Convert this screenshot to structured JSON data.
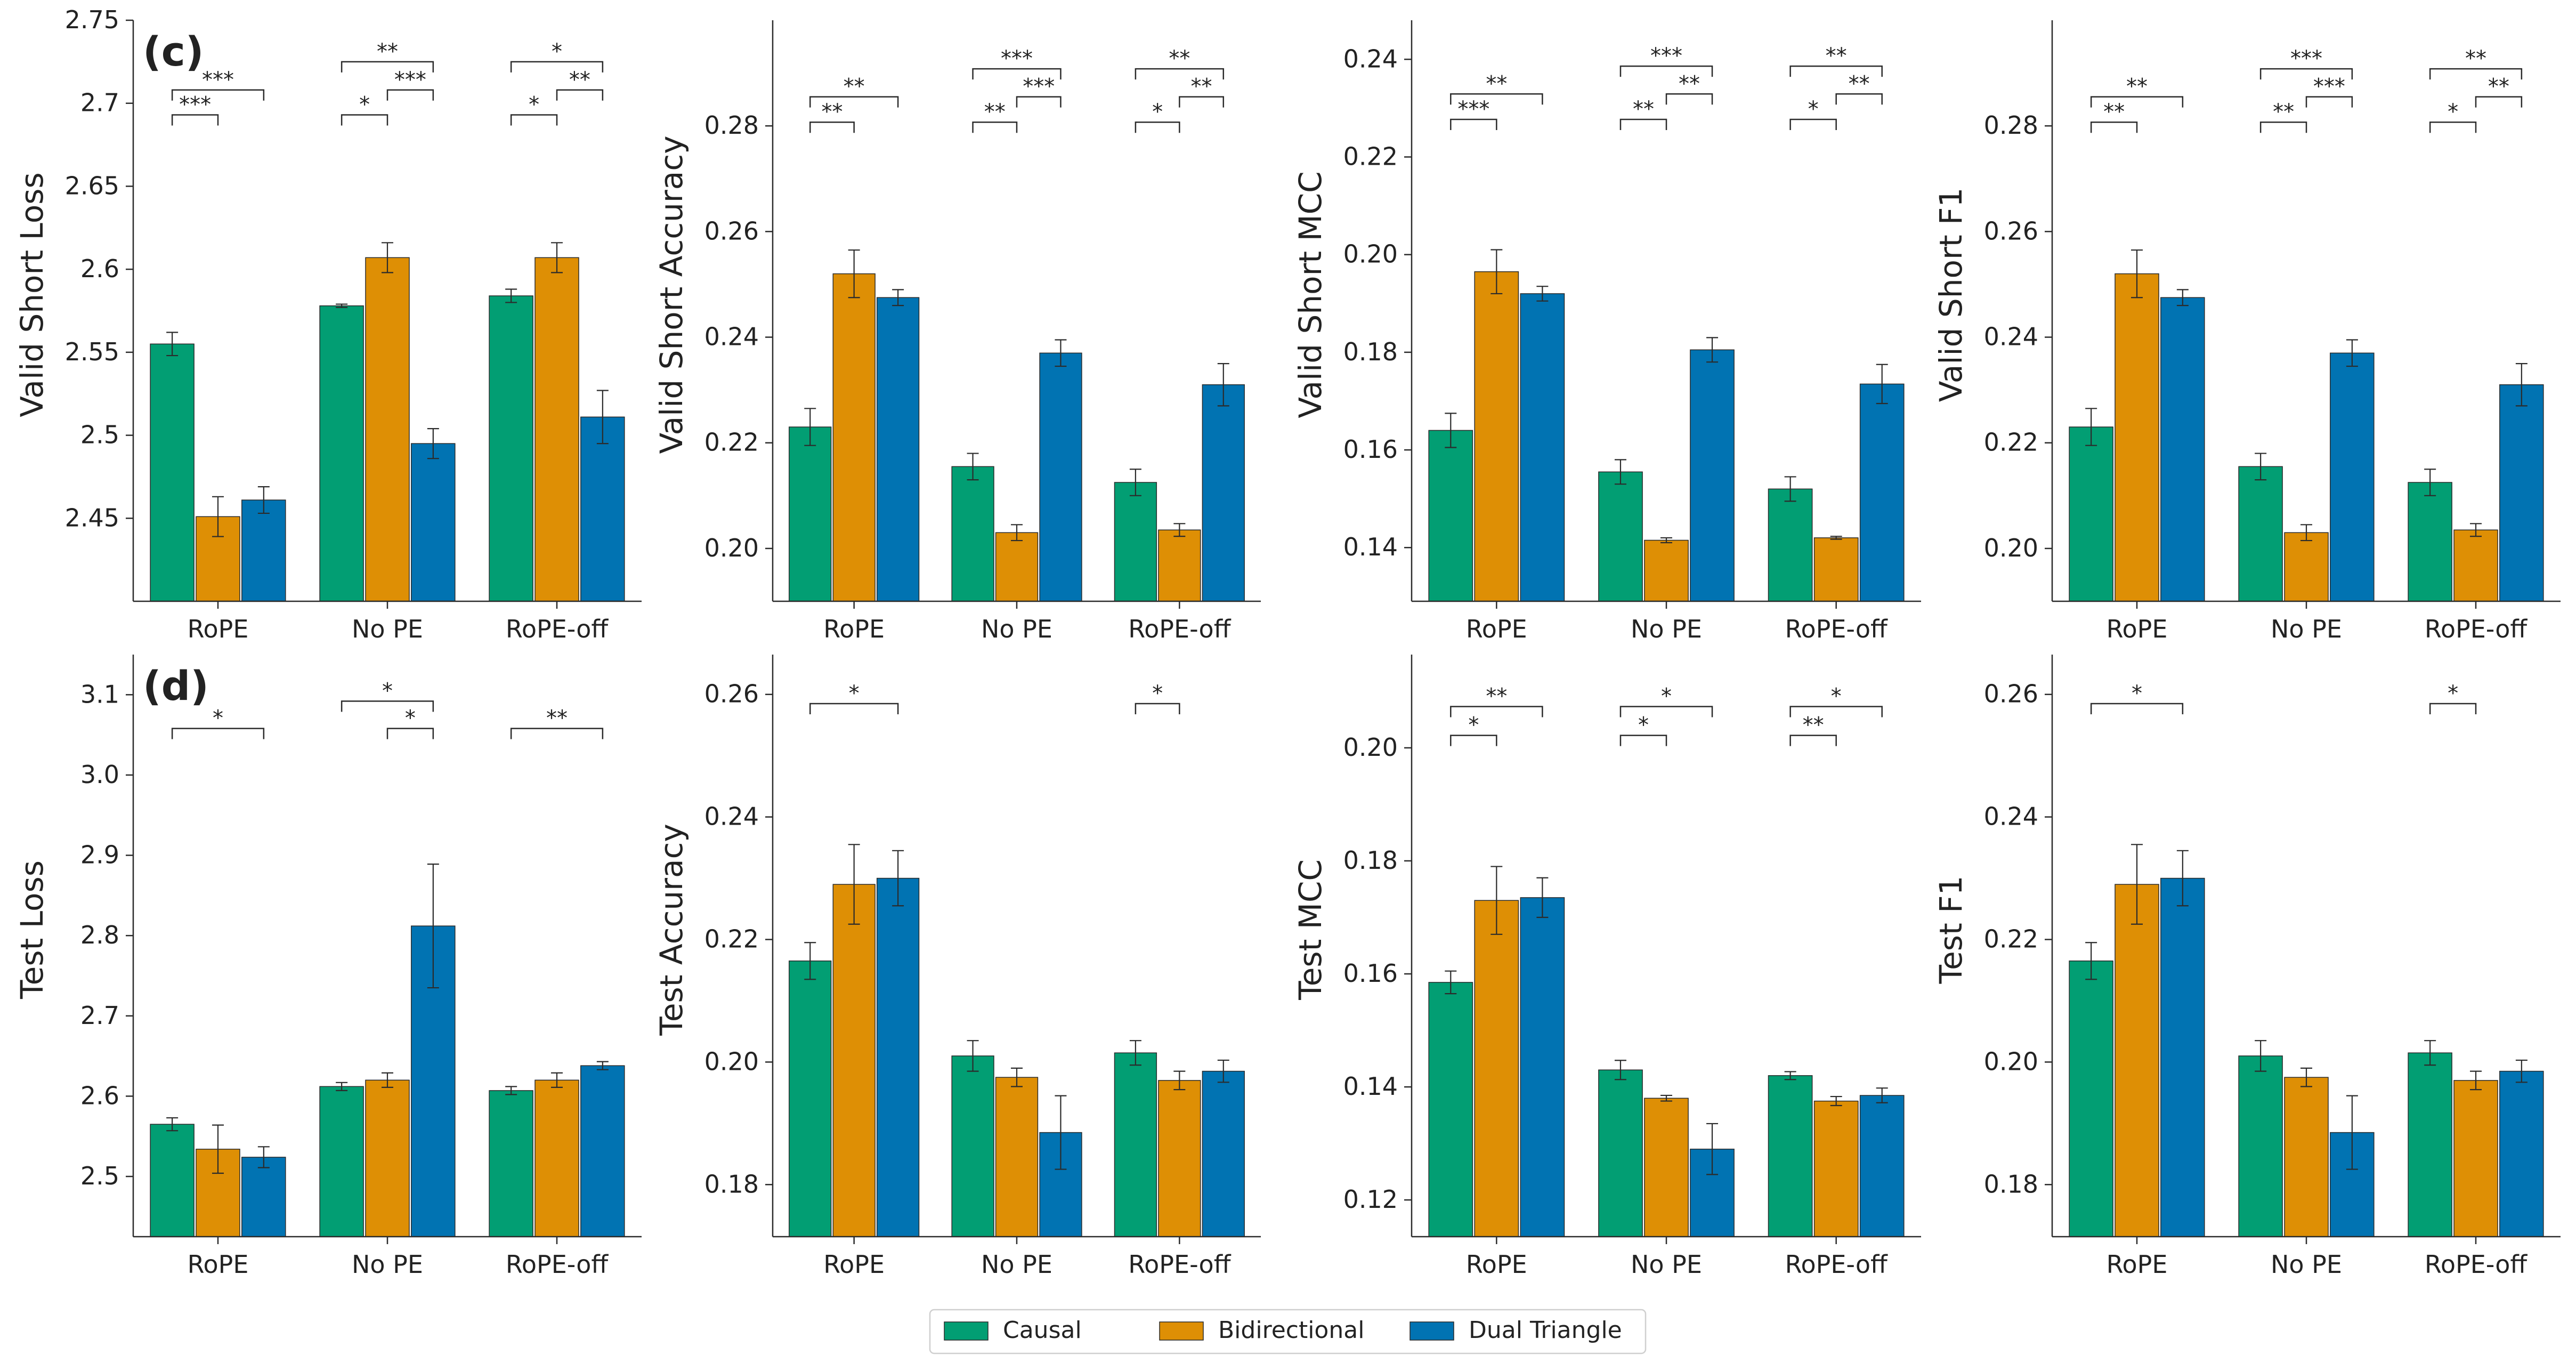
{
  "legend": {
    "items": [
      {
        "label": "Causal",
        "color": "#029e73"
      },
      {
        "label": "Bidirectional",
        "color": "#de8f05"
      },
      {
        "label": "Dual Triangle",
        "color": "#0173b2"
      }
    ],
    "placement": "bottom-center"
  },
  "chart_data": [
    {
      "type": "bar",
      "panel_label": "(c)",
      "ylabel": "Valid Short Loss",
      "categories": [
        "RoPE",
        "No PE",
        "RoPE-off"
      ],
      "ylim": [
        2.4,
        2.75
      ],
      "yticks": [
        2.45,
        2.5,
        2.55,
        2.6,
        2.65,
        2.7,
        2.75
      ],
      "series": [
        {
          "name": "Causal",
          "values": [
            2.555,
            2.578,
            2.584
          ],
          "err": [
            0.007,
            0.001,
            0.004
          ]
        },
        {
          "name": "Bidirectional",
          "values": [
            2.451,
            2.607,
            2.607
          ],
          "err": [
            0.012,
            0.009,
            0.009
          ]
        },
        {
          "name": "Dual Triangle",
          "values": [
            2.461,
            2.495,
            2.511
          ],
          "err": [
            0.008,
            0.009,
            0.016
          ]
        }
      ],
      "annotations": [
        {
          "group": 0,
          "pairs": [
            {
              "from": 0,
              "to": 1,
              "text": "***",
              "y": 2.693
            },
            {
              "from": 0,
              "to": 2,
              "text": "***",
              "y": 2.708
            }
          ]
        },
        {
          "group": 1,
          "pairs": [
            {
              "from": 0,
              "to": 1,
              "text": "*",
              "y": 2.693
            },
            {
              "from": 1,
              "to": 2,
              "text": "***",
              "y": 2.708
            },
            {
              "from": 0,
              "to": 2,
              "text": "**",
              "y": 2.725
            }
          ]
        },
        {
          "group": 2,
          "pairs": [
            {
              "from": 0,
              "to": 1,
              "text": "*",
              "y": 2.693
            },
            {
              "from": 1,
              "to": 2,
              "text": "**",
              "y": 2.708
            },
            {
              "from": 0,
              "to": 2,
              "text": "*",
              "y": 2.725
            }
          ]
        }
      ]
    },
    {
      "type": "bar",
      "panel_label": "",
      "ylabel": "Valid Short Accuracy",
      "categories": [
        "RoPE",
        "No PE",
        "RoPE-off"
      ],
      "ylim": [
        0.19,
        0.3
      ],
      "yticks": [
        0.2,
        0.22,
        0.24,
        0.26,
        0.28
      ],
      "series": [
        {
          "name": "Causal",
          "values": [
            0.223,
            0.2155,
            0.2125
          ],
          "err": [
            0.0035,
            0.0025,
            0.0025
          ]
        },
        {
          "name": "Bidirectional",
          "values": [
            0.252,
            0.203,
            0.2035
          ],
          "err": [
            0.0045,
            0.0015,
            0.0012
          ]
        },
        {
          "name": "Dual Triangle",
          "values": [
            0.2475,
            0.237,
            0.231
          ],
          "err": [
            0.0015,
            0.0025,
            0.004
          ]
        }
      ],
      "annotations": [
        {
          "group": 0,
          "pairs": [
            {
              "from": 0,
              "to": 1,
              "text": "**",
              "y": 0.2807
            },
            {
              "from": 0,
              "to": 2,
              "text": "**",
              "y": 0.2855
            }
          ]
        },
        {
          "group": 1,
          "pairs": [
            {
              "from": 0,
              "to": 1,
              "text": "**",
              "y": 0.2807
            },
            {
              "from": 1,
              "to": 2,
              "text": "***",
              "y": 0.2855
            },
            {
              "from": 0,
              "to": 2,
              "text": "***",
              "y": 0.2908
            }
          ]
        },
        {
          "group": 2,
          "pairs": [
            {
              "from": 0,
              "to": 1,
              "text": "*",
              "y": 0.2807
            },
            {
              "from": 1,
              "to": 2,
              "text": "**",
              "y": 0.2855
            },
            {
              "from": 0,
              "to": 2,
              "text": "**",
              "y": 0.2908
            }
          ]
        }
      ]
    },
    {
      "type": "bar",
      "panel_label": "",
      "ylabel": "Valid Short MCC",
      "categories": [
        "RoPE",
        "No PE",
        "RoPE-off"
      ],
      "ylim": [
        0.129,
        0.248
      ],
      "yticks": [
        0.14,
        0.16,
        0.18,
        0.2,
        0.22,
        0.24
      ],
      "series": [
        {
          "name": "Causal",
          "values": [
            0.164,
            0.1555,
            0.152
          ],
          "err": [
            0.0035,
            0.0025,
            0.0025
          ]
        },
        {
          "name": "Bidirectional",
          "values": [
            0.1965,
            0.1415,
            0.142
          ],
          "err": [
            0.0045,
            0.0005,
            0.0003
          ]
        },
        {
          "name": "Dual Triangle",
          "values": [
            0.192,
            0.1805,
            0.1735
          ],
          "err": [
            0.0015,
            0.0025,
            0.004
          ]
        }
      ],
      "annotations": [
        {
          "group": 0,
          "pairs": [
            {
              "from": 0,
              "to": 1,
              "text": "***",
              "y": 0.2277
            },
            {
              "from": 0,
              "to": 2,
              "text": "**",
              "y": 0.2329
            }
          ]
        },
        {
          "group": 1,
          "pairs": [
            {
              "from": 0,
              "to": 1,
              "text": "**",
              "y": 0.2277
            },
            {
              "from": 1,
              "to": 2,
              "text": "**",
              "y": 0.2329
            },
            {
              "from": 0,
              "to": 2,
              "text": "***",
              "y": 0.2386
            }
          ]
        },
        {
          "group": 2,
          "pairs": [
            {
              "from": 0,
              "to": 1,
              "text": "*",
              "y": 0.2277
            },
            {
              "from": 1,
              "to": 2,
              "text": "**",
              "y": 0.2329
            },
            {
              "from": 0,
              "to": 2,
              "text": "**",
              "y": 0.2386
            }
          ]
        }
      ]
    },
    {
      "type": "bar",
      "panel_label": "",
      "ylabel": "Valid Short F1",
      "categories": [
        "RoPE",
        "No PE",
        "RoPE-off"
      ],
      "ylim": [
        0.19,
        0.3
      ],
      "yticks": [
        0.2,
        0.22,
        0.24,
        0.26,
        0.28
      ],
      "series": [
        {
          "name": "Causal",
          "values": [
            0.223,
            0.2155,
            0.2125
          ],
          "err": [
            0.0035,
            0.0025,
            0.0025
          ]
        },
        {
          "name": "Bidirectional",
          "values": [
            0.252,
            0.203,
            0.2035
          ],
          "err": [
            0.0045,
            0.0015,
            0.0012
          ]
        },
        {
          "name": "Dual Triangle",
          "values": [
            0.2475,
            0.237,
            0.231
          ],
          "err": [
            0.0015,
            0.0025,
            0.004
          ]
        }
      ],
      "annotations": [
        {
          "group": 0,
          "pairs": [
            {
              "from": 0,
              "to": 1,
              "text": "**",
              "y": 0.2807
            },
            {
              "from": 0,
              "to": 2,
              "text": "**",
              "y": 0.2855
            }
          ]
        },
        {
          "group": 1,
          "pairs": [
            {
              "from": 0,
              "to": 1,
              "text": "**",
              "y": 0.2807
            },
            {
              "from": 1,
              "to": 2,
              "text": "***",
              "y": 0.2855
            },
            {
              "from": 0,
              "to": 2,
              "text": "***",
              "y": 0.2908
            }
          ]
        },
        {
          "group": 2,
          "pairs": [
            {
              "from": 0,
              "to": 1,
              "text": "*",
              "y": 0.2807
            },
            {
              "from": 1,
              "to": 2,
              "text": "**",
              "y": 0.2855
            },
            {
              "from": 0,
              "to": 2,
              "text": "**",
              "y": 0.2908
            }
          ]
        }
      ]
    },
    {
      "type": "bar",
      "panel_label": "(d)",
      "ylabel": "Test Loss",
      "categories": [
        "RoPE",
        "No PE",
        "RoPE-off"
      ],
      "ylim": [
        2.425,
        3.15
      ],
      "yticks": [
        2.5,
        2.6,
        2.7,
        2.8,
        2.9,
        3.0,
        3.1
      ],
      "series": [
        {
          "name": "Causal",
          "values": [
            2.565,
            2.612,
            2.607
          ],
          "err": [
            0.008,
            0.005,
            0.005
          ]
        },
        {
          "name": "Bidirectional",
          "values": [
            2.534,
            2.62,
            2.62
          ],
          "err": [
            0.03,
            0.009,
            0.009
          ]
        },
        {
          "name": "Dual Triangle",
          "values": [
            2.524,
            2.812,
            2.638
          ],
          "err": [
            0.013,
            0.077,
            0.005
          ]
        }
      ],
      "annotations": [
        {
          "group": 0,
          "pairs": [
            {
              "from": 0,
              "to": 2,
              "text": "*",
              "y": 3.058
            }
          ]
        },
        {
          "group": 1,
          "pairs": [
            {
              "from": 1,
              "to": 2,
              "text": "*",
              "y": 3.058
            },
            {
              "from": 0,
              "to": 2,
              "text": "*",
              "y": 3.092
            }
          ]
        },
        {
          "group": 2,
          "pairs": [
            {
              "from": 0,
              "to": 2,
              "text": "**",
              "y": 3.058
            }
          ]
        }
      ]
    },
    {
      "type": "bar",
      "panel_label": "",
      "ylabel": "Test Accuracy",
      "categories": [
        "RoPE",
        "No PE",
        "RoPE-off"
      ],
      "ylim": [
        0.1715,
        0.2665
      ],
      "yticks": [
        0.18,
        0.2,
        0.22,
        0.24,
        0.26
      ],
      "series": [
        {
          "name": "Causal",
          "values": [
            0.2165,
            0.201,
            0.2015
          ],
          "err": [
            0.003,
            0.0025,
            0.002
          ]
        },
        {
          "name": "Bidirectional",
          "values": [
            0.229,
            0.1975,
            0.197
          ],
          "err": [
            0.0065,
            0.0015,
            0.0015
          ]
        },
        {
          "name": "Dual Triangle",
          "values": [
            0.23,
            0.1885,
            0.1985
          ],
          "err": [
            0.0045,
            0.006,
            0.0018
          ]
        }
      ],
      "annotations": [
        {
          "group": 0,
          "pairs": [
            {
              "from": 0,
              "to": 2,
              "text": "*",
              "y": 0.2585
            }
          ]
        },
        {
          "group": 2,
          "pairs": [
            {
              "from": 0,
              "to": 1,
              "text": "*",
              "y": 0.2585
            }
          ]
        }
      ]
    },
    {
      "type": "bar",
      "panel_label": "",
      "ylabel": "Test MCC",
      "categories": [
        "RoPE",
        "No PE",
        "RoPE-off"
      ],
      "ylim": [
        0.1135,
        0.2165
      ],
      "yticks": [
        0.12,
        0.14,
        0.16,
        0.18,
        0.2
      ],
      "series": [
        {
          "name": "Causal",
          "values": [
            0.1585,
            0.143,
            0.142
          ],
          "err": [
            0.002,
            0.0017,
            0.0007
          ]
        },
        {
          "name": "Bidirectional",
          "values": [
            0.173,
            0.138,
            0.1375
          ],
          "err": [
            0.006,
            0.0005,
            0.0008
          ]
        },
        {
          "name": "Dual Triangle",
          "values": [
            0.1735,
            0.129,
            0.1385
          ],
          "err": [
            0.0035,
            0.0045,
            0.0013
          ]
        }
      ],
      "annotations": [
        {
          "group": 0,
          "pairs": [
            {
              "from": 0,
              "to": 1,
              "text": "*",
              "y": 0.2022
            },
            {
              "from": 0,
              "to": 2,
              "text": "**",
              "y": 0.2073
            }
          ]
        },
        {
          "group": 1,
          "pairs": [
            {
              "from": 0,
              "to": 1,
              "text": "*",
              "y": 0.2022
            },
            {
              "from": 0,
              "to": 2,
              "text": "*",
              "y": 0.2073
            }
          ]
        },
        {
          "group": 2,
          "pairs": [
            {
              "from": 0,
              "to": 1,
              "text": "**",
              "y": 0.2022
            },
            {
              "from": 0,
              "to": 2,
              "text": "*",
              "y": 0.2073
            }
          ]
        }
      ]
    },
    {
      "type": "bar",
      "panel_label": "",
      "ylabel": "Test F1",
      "categories": [
        "RoPE",
        "No PE",
        "RoPE-off"
      ],
      "ylim": [
        0.1715,
        0.2665
      ],
      "yticks": [
        0.18,
        0.2,
        0.22,
        0.24,
        0.26
      ],
      "series": [
        {
          "name": "Causal",
          "values": [
            0.2165,
            0.201,
            0.2015
          ],
          "err": [
            0.003,
            0.0025,
            0.002
          ]
        },
        {
          "name": "Bidirectional",
          "values": [
            0.229,
            0.1975,
            0.197
          ],
          "err": [
            0.0065,
            0.0015,
            0.0015
          ]
        },
        {
          "name": "Dual Triangle",
          "values": [
            0.23,
            0.1885,
            0.1985
          ],
          "err": [
            0.0045,
            0.006,
            0.0018
          ]
        }
      ],
      "annotations": [
        {
          "group": 0,
          "pairs": [
            {
              "from": 0,
              "to": 2,
              "text": "*",
              "y": 0.2585
            }
          ]
        },
        {
          "group": 2,
          "pairs": [
            {
              "from": 0,
              "to": 1,
              "text": "*",
              "y": 0.2585
            }
          ]
        }
      ]
    }
  ]
}
